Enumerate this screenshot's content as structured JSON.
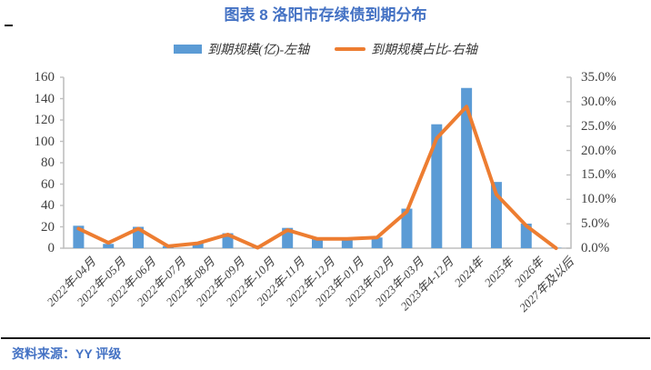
{
  "page": {
    "dash_mark": "—"
  },
  "source": "资料来源：YY 评级",
  "colors": {
    "bar": "#5B9BD5",
    "line": "#ED7D31",
    "title_text": "#4472C4",
    "source_text": "#4472C4",
    "axis_line": "#BFBFBF",
    "tick_text": "#404040"
  },
  "chart_data": {
    "type": "bar+line",
    "title": "图表 8 洛阳市存续债到期分布",
    "categories": [
      "2022年-04月",
      "2022年-05月",
      "2022年-06月",
      "2022年-07月",
      "2022年-08月",
      "2022年-09月",
      "2022年-10月",
      "2022年-11月",
      "2022年-12月",
      "2023年-01月",
      "2023年-02月",
      "2023年-03月",
      "2023年4-12月",
      "2024年",
      "2025年",
      "2026年",
      "2027年及以后"
    ],
    "series": [
      {
        "name": "到期规模(亿)-左轴",
        "type": "bar",
        "axis": "left",
        "color": "#5B9BD5",
        "values": [
          21,
          4,
          20,
          2,
          5,
          14,
          0.5,
          19,
          10,
          10,
          10,
          37,
          116,
          150,
          62,
          23,
          0.4
        ]
      },
      {
        "name": "到期规模占比-右轴",
        "type": "line",
        "axis": "right",
        "color": "#ED7D31",
        "values": [
          4.0,
          1.1,
          4.0,
          0.4,
          1.0,
          2.8,
          0.1,
          3.7,
          1.9,
          1.9,
          2.2,
          7.5,
          22.5,
          29.0,
          11.0,
          4.6,
          0.0
        ]
      }
    ],
    "left_axis": {
      "min": 0,
      "max": 160,
      "step": 20,
      "tick_labels": [
        "0",
        "20",
        "40",
        "60",
        "80",
        "100",
        "120",
        "140",
        "160"
      ]
    },
    "right_axis": {
      "min": 0,
      "max": 35,
      "step": 5,
      "unit": "%",
      "tick_labels": [
        "0.0%",
        "5.0%",
        "10.0%",
        "15.0%",
        "20.0%",
        "25.0%",
        "30.0%",
        "35.0%"
      ]
    },
    "legend_position": "top",
    "grid": false
  }
}
